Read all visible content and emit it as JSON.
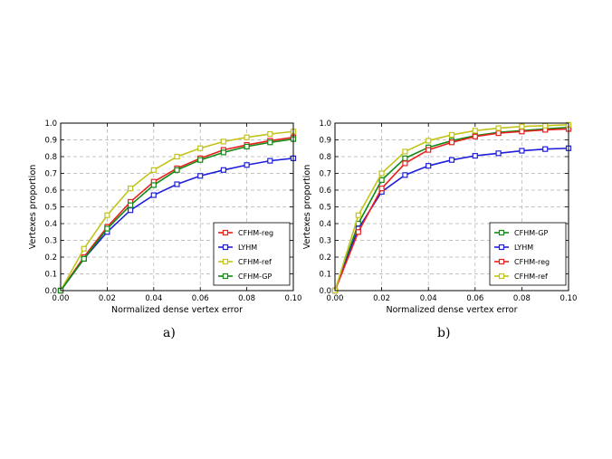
{
  "captions": [
    "a)",
    "b)"
  ],
  "chart_data": [
    {
      "type": "line",
      "xlabel": "Normalized dense vertex error",
      "ylabel": "Vertexes proportion",
      "xlim": [
        0.0,
        0.1
      ],
      "ylim": [
        0.0,
        1.0
      ],
      "xticks": [
        "0.00",
        "0.02",
        "0.04",
        "0.06",
        "0.08",
        "0.10"
      ],
      "yticks": [
        "0.0",
        "0.1",
        "0.2",
        "0.3",
        "0.4",
        "0.5",
        "0.6",
        "0.7",
        "0.8",
        "0.9",
        "1.0"
      ],
      "grid": true,
      "legend_position": "lower-right",
      "x": [
        0.0,
        0.01,
        0.02,
        0.03,
        0.04,
        0.05,
        0.06,
        0.07,
        0.08,
        0.09,
        0.1
      ],
      "series": [
        {
          "name": "CFHM-reg",
          "color": "#e8201e",
          "values": [
            0.0,
            0.2,
            0.38,
            0.53,
            0.65,
            0.73,
            0.79,
            0.84,
            0.87,
            0.895,
            0.915
          ]
        },
        {
          "name": "LYHM",
          "color": "#1f1fdb",
          "values": [
            0.0,
            0.19,
            0.35,
            0.48,
            0.57,
            0.635,
            0.685,
            0.72,
            0.75,
            0.775,
            0.79
          ]
        },
        {
          "name": "CFHM-ref",
          "color": "#c3c31a",
          "values": [
            0.0,
            0.25,
            0.45,
            0.61,
            0.72,
            0.8,
            0.85,
            0.89,
            0.915,
            0.935,
            0.95
          ]
        },
        {
          "name": "CFHM-GP",
          "color": "#128a12",
          "values": [
            0.0,
            0.19,
            0.37,
            0.51,
            0.63,
            0.72,
            0.78,
            0.825,
            0.86,
            0.885,
            0.905
          ]
        }
      ]
    },
    {
      "type": "line",
      "xlabel": "Normalized dense vertex error",
      "ylabel": "Vertexes proportion",
      "xlim": [
        0.0,
        0.1
      ],
      "ylim": [
        0.0,
        1.0
      ],
      "xticks": [
        "0.00",
        "0.02",
        "0.04",
        "0.06",
        "0.08",
        "0.10"
      ],
      "yticks": [
        "0.0",
        "0.1",
        "0.2",
        "0.3",
        "0.4",
        "0.5",
        "0.6",
        "0.7",
        "0.8",
        "0.9",
        "1.0"
      ],
      "grid": true,
      "legend_position": "lower-right",
      "x": [
        0.0,
        0.01,
        0.02,
        0.03,
        0.04,
        0.05,
        0.06,
        0.07,
        0.08,
        0.09,
        0.1
      ],
      "series": [
        {
          "name": "CFHM-GP",
          "color": "#128a12",
          "values": [
            0.0,
            0.4,
            0.66,
            0.79,
            0.855,
            0.895,
            0.925,
            0.945,
            0.955,
            0.965,
            0.975
          ]
        },
        {
          "name": "LYHM",
          "color": "#1f1fdb",
          "values": [
            0.0,
            0.37,
            0.59,
            0.69,
            0.745,
            0.78,
            0.805,
            0.82,
            0.835,
            0.845,
            0.85
          ]
        },
        {
          "name": "CFHM-reg",
          "color": "#e8201e",
          "values": [
            0.0,
            0.35,
            0.61,
            0.76,
            0.84,
            0.885,
            0.92,
            0.94,
            0.95,
            0.96,
            0.965
          ]
        },
        {
          "name": "CFHM-ref",
          "color": "#c3c31a",
          "values": [
            0.0,
            0.45,
            0.7,
            0.83,
            0.895,
            0.93,
            0.955,
            0.97,
            0.98,
            0.985,
            0.99
          ]
        }
      ]
    }
  ]
}
